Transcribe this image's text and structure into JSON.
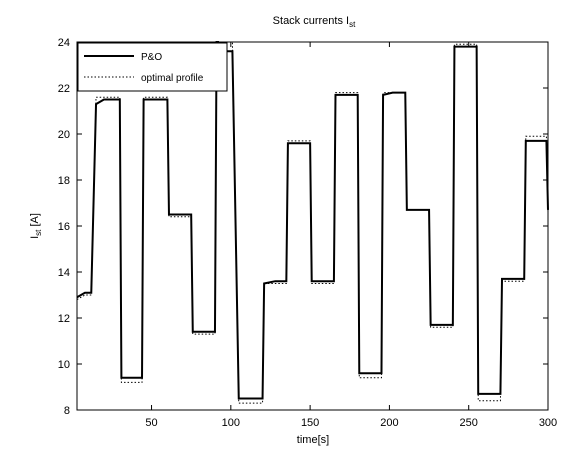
{
  "chart_data": {
    "type": "line",
    "title": "Stack currents I",
    "title_subscript": "st",
    "xlabel": "time[s]",
    "ylabel": "I",
    "ylabel_subscript": "st",
    "ylabel_unit": " [A]",
    "xlim": [
      3,
      300
    ],
    "ylim": [
      8,
      24
    ],
    "xticks": [
      50,
      100,
      150,
      200,
      250,
      300
    ],
    "yticks": [
      8,
      10,
      12,
      14,
      16,
      18,
      20,
      22,
      24
    ],
    "grid": false,
    "legend_position": "top-left",
    "series": [
      {
        "name": "P&O",
        "style": "solid",
        "color": "#000000",
        "points": [
          [
            3,
            12.9
          ],
          [
            8,
            13.1
          ],
          [
            12,
            13.1
          ],
          [
            15,
            21.3
          ],
          [
            20,
            21.5
          ],
          [
            30,
            21.5
          ],
          [
            31,
            9.4
          ],
          [
            37,
            9.4
          ],
          [
            44,
            9.4
          ],
          [
            45,
            21.5
          ],
          [
            52,
            21.5
          ],
          [
            60,
            21.5
          ],
          [
            61,
            16.5
          ],
          [
            67,
            16.5
          ],
          [
            75,
            16.5
          ],
          [
            76,
            11.4
          ],
          [
            82,
            11.4
          ],
          [
            90,
            11.4
          ],
          [
            91,
            24.0
          ],
          [
            92,
            24.0
          ],
          [
            93,
            23.7
          ],
          [
            97,
            23.6
          ],
          [
            100,
            23.6
          ],
          [
            101,
            23.6
          ],
          [
            105,
            8.5
          ],
          [
            112,
            8.5
          ],
          [
            120,
            8.5
          ],
          [
            121,
            13.5
          ],
          [
            128,
            13.6
          ],
          [
            135,
            13.6
          ],
          [
            136,
            19.6
          ],
          [
            142,
            19.6
          ],
          [
            150,
            19.6
          ],
          [
            151,
            13.6
          ],
          [
            157,
            13.6
          ],
          [
            165,
            13.6
          ],
          [
            166,
            21.7
          ],
          [
            172,
            21.7
          ],
          [
            180,
            21.7
          ],
          [
            181,
            9.6
          ],
          [
            187,
            9.6
          ],
          [
            195,
            9.6
          ],
          [
            196,
            21.7
          ],
          [
            202,
            21.8
          ],
          [
            210,
            21.8
          ],
          [
            211,
            16.7
          ],
          [
            217,
            16.7
          ],
          [
            225,
            16.7
          ],
          [
            226,
            11.7
          ],
          [
            232,
            11.7
          ],
          [
            240,
            11.7
          ],
          [
            241,
            23.8
          ],
          [
            247,
            23.8
          ],
          [
            255,
            23.8
          ],
          [
            256,
            8.7
          ],
          [
            262,
            8.7
          ],
          [
            270,
            8.7
          ],
          [
            271,
            13.7
          ],
          [
            277,
            13.7
          ],
          [
            285,
            13.7
          ],
          [
            286,
            19.7
          ],
          [
            292,
            19.7
          ],
          [
            299,
            19.7
          ],
          [
            300,
            16.7
          ]
        ]
      },
      {
        "name": "optimal profile",
        "style": "dotted",
        "color": "#000000",
        "points": [
          [
            3,
            12.8
          ],
          [
            8,
            13.0
          ],
          [
            12,
            13.0
          ],
          [
            15,
            21.6
          ],
          [
            20,
            21.6
          ],
          [
            30,
            21.6
          ],
          [
            31,
            9.2
          ],
          [
            37,
            9.2
          ],
          [
            44,
            9.2
          ],
          [
            45,
            21.6
          ],
          [
            52,
            21.6
          ],
          [
            60,
            21.6
          ],
          [
            61,
            16.4
          ],
          [
            67,
            16.4
          ],
          [
            75,
            16.4
          ],
          [
            76,
            11.3
          ],
          [
            82,
            11.3
          ],
          [
            90,
            11.3
          ],
          [
            91,
            24.0
          ],
          [
            100,
            24.0
          ],
          [
            101,
            24.0
          ],
          [
            105,
            8.3
          ],
          [
            112,
            8.3
          ],
          [
            120,
            8.3
          ],
          [
            121,
            13.5
          ],
          [
            128,
            13.5
          ],
          [
            135,
            13.5
          ],
          [
            136,
            19.7
          ],
          [
            142,
            19.7
          ],
          [
            150,
            19.7
          ],
          [
            151,
            13.5
          ],
          [
            157,
            13.5
          ],
          [
            165,
            13.5
          ],
          [
            166,
            21.8
          ],
          [
            172,
            21.8
          ],
          [
            180,
            21.8
          ],
          [
            181,
            9.4
          ],
          [
            187,
            9.4
          ],
          [
            195,
            9.4
          ],
          [
            196,
            21.8
          ],
          [
            202,
            21.8
          ],
          [
            210,
            21.8
          ],
          [
            211,
            16.7
          ],
          [
            217,
            16.7
          ],
          [
            225,
            16.7
          ],
          [
            226,
            11.6
          ],
          [
            232,
            11.6
          ],
          [
            240,
            11.6
          ],
          [
            241,
            23.9
          ],
          [
            247,
            23.9
          ],
          [
            255,
            23.9
          ],
          [
            256,
            8.4
          ],
          [
            262,
            8.4
          ],
          [
            270,
            8.4
          ],
          [
            271,
            13.6
          ],
          [
            277,
            13.6
          ],
          [
            285,
            13.6
          ],
          [
            286,
            19.9
          ],
          [
            292,
            19.9
          ],
          [
            299,
            19.9
          ],
          [
            300,
            16.6
          ]
        ]
      }
    ]
  }
}
